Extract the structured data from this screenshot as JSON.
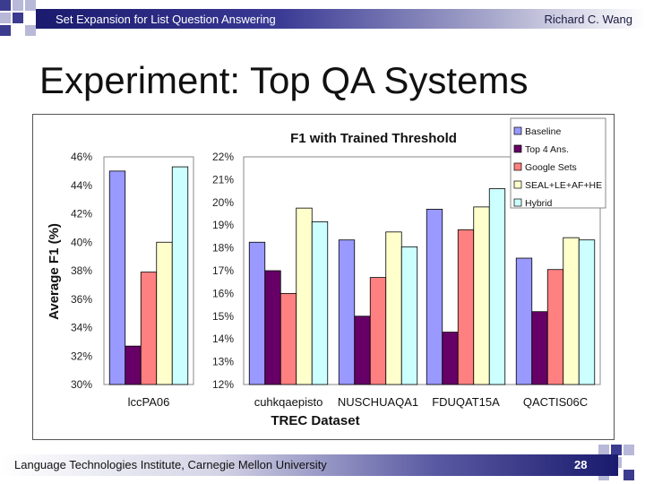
{
  "header": {
    "title": "Set Expansion for List Question Answering",
    "author": "Richard C. Wang"
  },
  "slide": {
    "title": "Experiment: Top QA Systems"
  },
  "footer": {
    "institution": "Language Technologies Institute, Carnegie Mellon University",
    "page_number": "28"
  },
  "colors": {
    "header_dark": "#1a1a6e",
    "deco_blue": "#3b3b8f",
    "deco_light": "#b8b8d8"
  },
  "chart_data": {
    "type": "bar",
    "title": "F1 with Trained Threshold",
    "xlabel": "TREC Dataset",
    "ylabel": "Average F1 (%)",
    "categories": [
      "lccPA06",
      "cuhkqaepisto",
      "NUSCHUAQA1",
      "FDUQAT15A",
      "QACTIS06C"
    ],
    "legend_position": "top-right",
    "left_axis": {
      "applies_to": [
        "lccPA06"
      ],
      "ylim": [
        30,
        46
      ],
      "ticks": [
        "30%",
        "32%",
        "34%",
        "36%",
        "38%",
        "40%",
        "42%",
        "44%",
        "46%"
      ]
    },
    "right_axis": {
      "applies_to": [
        "cuhkqaepisto",
        "NUSCHUAQA1",
        "FDUQAT15A",
        "QACTIS06C"
      ],
      "ylim": [
        12,
        22
      ],
      "ticks": [
        "12%",
        "13%",
        "14%",
        "15%",
        "16%",
        "17%",
        "18%",
        "19%",
        "20%",
        "21%",
        "22%"
      ]
    },
    "series": [
      {
        "name": "Baseline",
        "color": "#9999ff",
        "values": [
          45.0,
          18.25,
          18.35,
          19.7,
          17.55
        ]
      },
      {
        "name": "Top 4 Ans.",
        "color": "#660066",
        "values": [
          32.7,
          17.0,
          15.0,
          14.3,
          15.2
        ]
      },
      {
        "name": "Google Sets",
        "color": "#ff8080",
        "values": [
          37.9,
          16.0,
          16.7,
          18.8,
          17.05
        ]
      },
      {
        "name": "SEAL+LE+AF+HE",
        "color": "#ffffcc",
        "values": [
          40.0,
          19.75,
          18.7,
          19.8,
          18.45
        ]
      },
      {
        "name": "Hybrid",
        "color": "#ccffff",
        "values": [
          45.3,
          19.15,
          18.05,
          20.6,
          18.35
        ]
      }
    ]
  }
}
